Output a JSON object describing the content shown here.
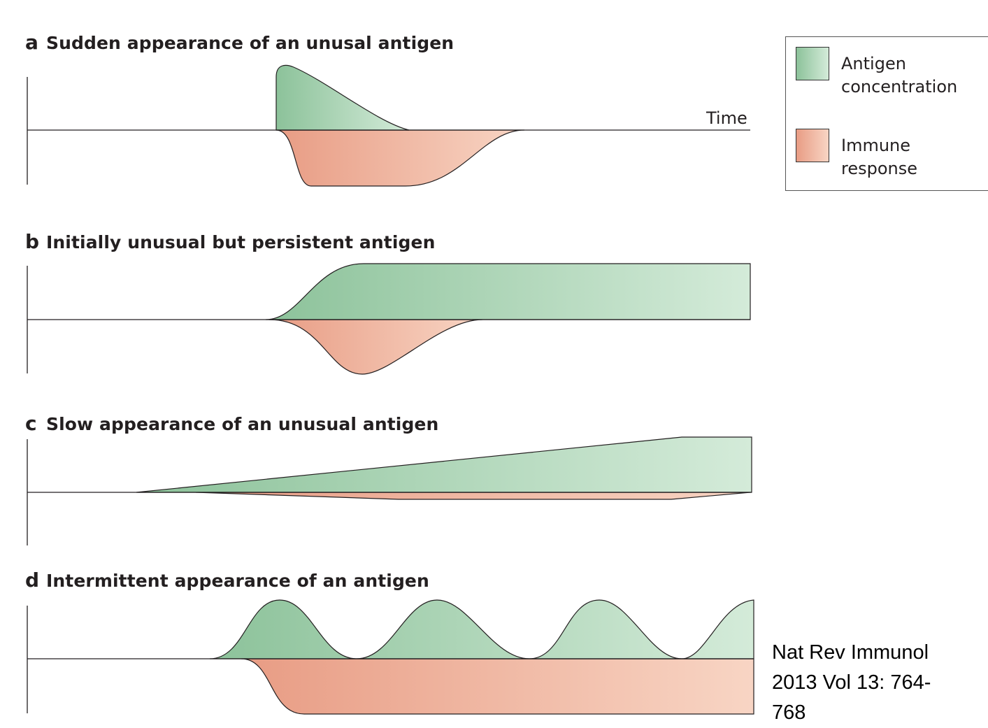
{
  "panels": [
    {
      "letter": "a",
      "title": "Sudden appearance of an unusal antigen"
    },
    {
      "letter": "b",
      "title": "Initially unusual but persistent antigen"
    },
    {
      "letter": "c",
      "title": "Slow appearance of an unusual antigen"
    },
    {
      "letter": "d",
      "title": "Intermittent appearance of an antigen"
    }
  ],
  "axis": {
    "time_label": "Time"
  },
  "legend": {
    "antigen_line1": "Antigen",
    "antigen_line2": "concentration",
    "immune_line1": "Immune",
    "immune_line2": "response"
  },
  "citation": {
    "line1": "Nat Rev Immunol",
    "line2": "2013 Vol 13: 764-",
    "line3": "768"
  },
  "colors": {
    "antigen_dark": "#8cc29a",
    "antigen_light": "#d4ebd9",
    "immune_dark": "#e89c84",
    "immune_light": "#f8d5c4",
    "line": "#231f20"
  }
}
